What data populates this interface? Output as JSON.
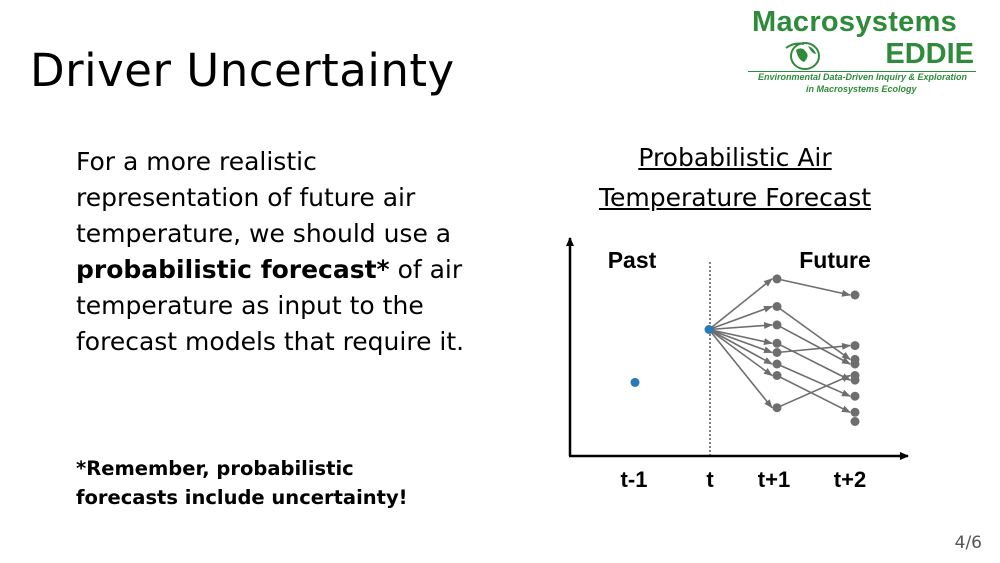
{
  "slide": {
    "title": "Driver Uncertainty",
    "page_number": "4/6"
  },
  "logo": {
    "line1": "Macrosystems",
    "line2": "EDDIE",
    "subtitle1": "Environmental Data-Driven Inquiry & Exploration",
    "subtitle2": "in Macrosystems Ecology",
    "color": "#2e8b3a"
  },
  "body": {
    "text_before": "For a more realistic representation of future air temperature, we should use a ",
    "text_bold": "probabilistic forecast*",
    "text_after": " of air temperature as input to the forecast models that require it.",
    "note_line1": "*Remember, probabilistic",
    "note_line2": "forecasts include uncertainty!"
  },
  "chart_title": {
    "line1": "Probabilistic Air",
    "line2": "Temperature Forecast"
  },
  "chart_data": {
    "type": "scatter",
    "region_labels": {
      "left": "Past",
      "right": "Future"
    },
    "x_ticks": [
      "t-1",
      "t",
      "t+1",
      "t+2"
    ],
    "observed": [
      {
        "x": "t-1",
        "y": 0.32
      },
      {
        "x": "t",
        "y": 0.55
      }
    ],
    "ensemble_t1": [
      0.77,
      0.65,
      0.57,
      0.49,
      0.45,
      0.4,
      0.35,
      0.21
    ],
    "ensemble_t2": [
      0.7,
      0.48,
      0.42,
      0.4,
      0.35,
      0.33,
      0.26,
      0.19,
      0.15
    ],
    "ensemble_arrows": [
      [
        0,
        0
      ],
      [
        1,
        2
      ],
      [
        2,
        3
      ],
      [
        3,
        5
      ],
      [
        4,
        1
      ],
      [
        5,
        6
      ],
      [
        6,
        7
      ],
      [
        7,
        4
      ]
    ],
    "colors": {
      "observed": "#2a7ab8",
      "ensemble": "#6e6e6e",
      "axis": "#000000"
    }
  }
}
